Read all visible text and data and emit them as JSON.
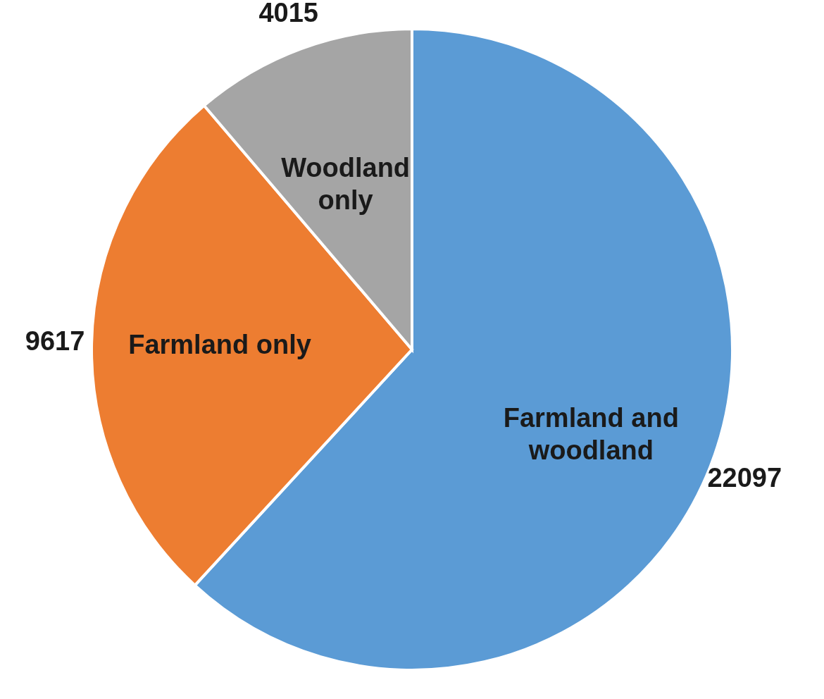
{
  "chart_data": {
    "type": "pie",
    "categories": [
      "Farmland and woodland",
      "Farmland only",
      "Woodland only"
    ],
    "values": [
      22097,
      9617,
      4015
    ],
    "colors": [
      "#5b9bd5",
      "#ed7d31",
      "#a5a5a5"
    ],
    "data_labels": true
  }
}
